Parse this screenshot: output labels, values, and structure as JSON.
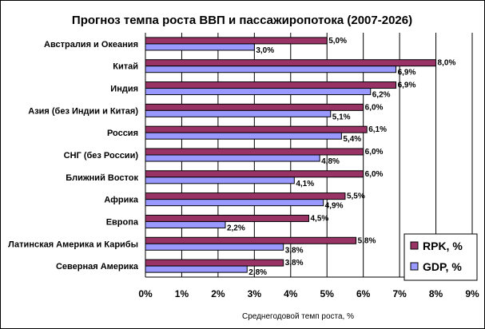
{
  "chart_data": {
    "type": "bar",
    "orientation": "horizontal",
    "title": "Прогноз темпа роста ВВП и пассажиропотока (2007-2026)",
    "xlabel": "Среднегодовой темп роста, %",
    "ylabel": "",
    "xlim": [
      0,
      9
    ],
    "x_ticks": [
      "0%",
      "1%",
      "2%",
      "3%",
      "4%",
      "5%",
      "6%",
      "7%",
      "8%",
      "9%"
    ],
    "grid": "vertical",
    "legend_position": "bottom-right",
    "categories": [
      "Австралия и Океания",
      "Китай",
      "Индия",
      "Азия (без Индии и Китая)",
      "Россия",
      "СНГ (без России)",
      "Ближний Восток",
      "Африка",
      "Европа",
      "Латинская Америка и Карибы",
      "Северная Америка"
    ],
    "series": [
      {
        "name": "RPK, %",
        "color": "#993366",
        "values": [
          5.0,
          8.0,
          6.9,
          6.0,
          6.1,
          6.0,
          6.0,
          5.5,
          4.5,
          5.8,
          3.8
        ],
        "labels": [
          "5,0%",
          "8,0%",
          "6,9%",
          "6,0%",
          "6,1%",
          "6,0%",
          "6,0%",
          "5,5%",
          "4,5%",
          "5,8%",
          "3,8%"
        ]
      },
      {
        "name": "GDP, %",
        "color": "#9999ff",
        "values": [
          3.0,
          6.9,
          6.2,
          5.1,
          5.4,
          4.8,
          4.1,
          4.9,
          2.2,
          3.8,
          2.8
        ],
        "labels": [
          "3,0%",
          "6,9%",
          "6,2%",
          "5,1%",
          "5,4%",
          "4,8%",
          "4,1%",
          "4,9%",
          "2,2%",
          "3,8%",
          "2,8%"
        ]
      }
    ]
  }
}
